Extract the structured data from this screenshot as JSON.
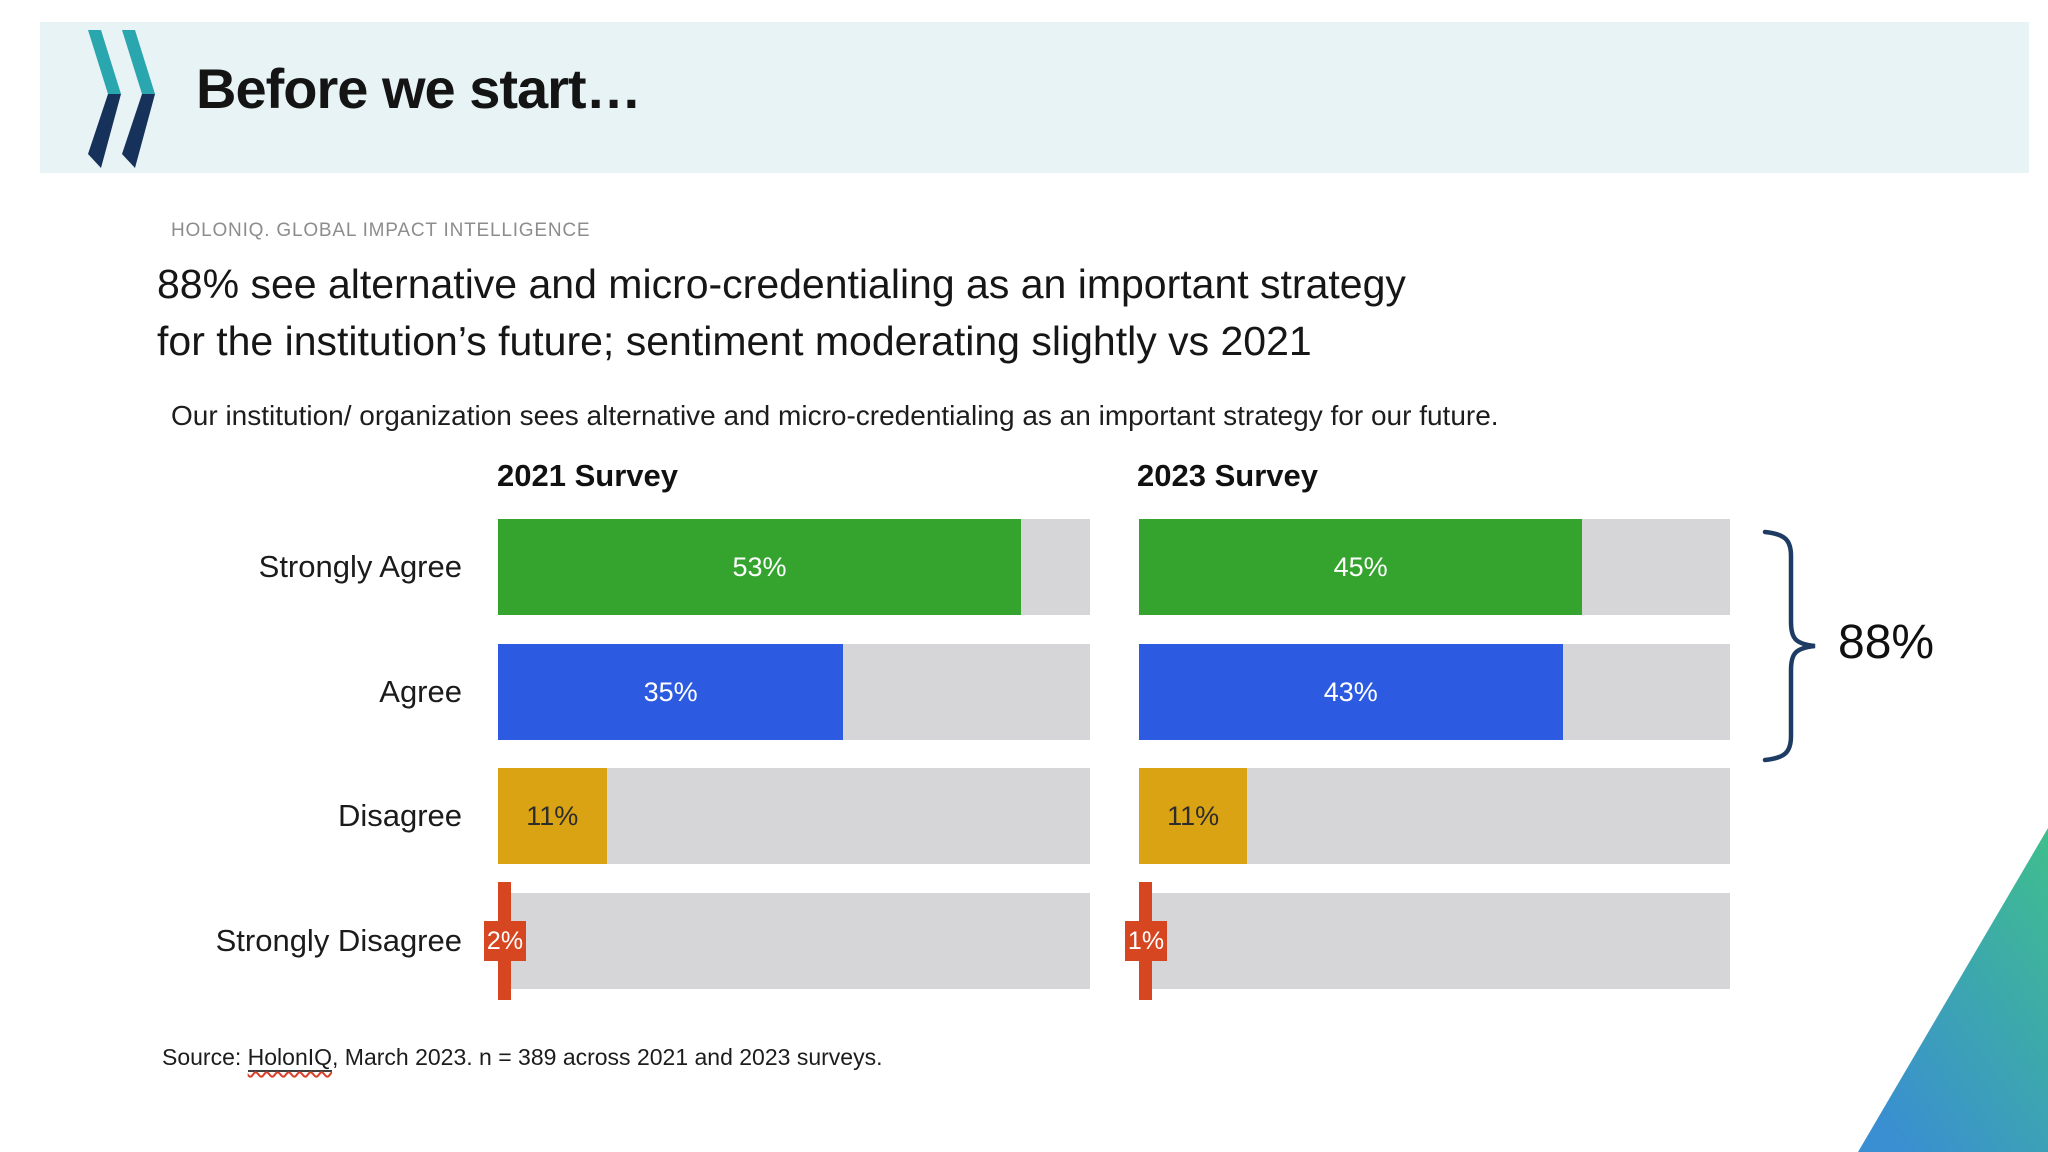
{
  "slide": {
    "header_title": "Before we start…",
    "eyebrow": "HOLONIQ. GLOBAL IMPACT INTELLIGENCE",
    "headline": {
      "line1": "88% see alternative and micro-credentialing as an important strategy",
      "line2": "for the institution’s future; sentiment moderating slightly vs 2021"
    },
    "subtitle": "Our institution/ organization sees alternative and micro-credentialing as an important strategy for our future.",
    "source": {
      "prefix": "Source: ",
      "link_text": "HolonIQ",
      "suffix": ", March 2023. n = 389 across 2021 and 2023 surveys."
    },
    "callout_label": "88%"
  },
  "chart_data": {
    "type": "bar",
    "orientation": "horizontal",
    "categories": [
      "Strongly Agree",
      "Agree",
      "Disagree",
      "Strongly Disagree"
    ],
    "series": [
      {
        "name": "2021 Survey",
        "values": [
          53,
          35,
          11,
          2
        ],
        "value_labels": [
          "53%",
          "35%",
          "11%",
          "2%"
        ]
      },
      {
        "name": "2023 Survey",
        "values": [
          45,
          43,
          11,
          1
        ],
        "value_labels": [
          "45%",
          "43%",
          "11%",
          "1%"
        ]
      }
    ],
    "axis_max": 60,
    "grid": false,
    "bar_colors": [
      "#35a42f",
      "#2c5be1",
      "#d9a313",
      "#d64621"
    ],
    "label_colors": [
      "#ffffff",
      "#ffffff",
      "#2d2d2d",
      "#ffffff"
    ],
    "annotation": {
      "text": "88%",
      "spans_categories": [
        "Strongly Agree",
        "Agree"
      ],
      "applies_to": "2023 Survey"
    }
  },
  "colors": {
    "header_bg": "#e8f3f5",
    "logo_teal": "#2aa6af",
    "logo_navy": "#17325a",
    "track_gray": "#d6d6d8",
    "bracket_navy": "#1e3c63",
    "corner_green": "#3fbe8d",
    "corner_blue": "#3a8ed2"
  }
}
